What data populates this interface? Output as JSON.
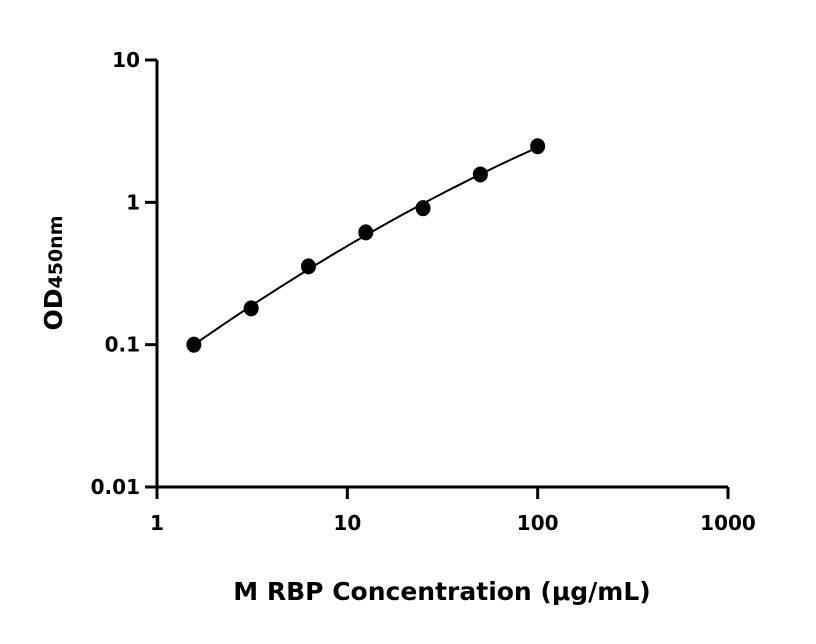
{
  "chart_data": {
    "type": "scatter",
    "title": "",
    "xlabel": "M RBP Concentration (μg/mL)",
    "ylabel_main": "OD",
    "ylabel_sub": "450nm",
    "xscale": "log",
    "yscale": "log",
    "xlim": [
      1,
      1000
    ],
    "ylim": [
      0.01,
      10
    ],
    "xticks": [
      "1",
      "10",
      "100",
      "1000"
    ],
    "yticks": [
      "0.01",
      "0.1",
      "1",
      "10"
    ],
    "grid": false,
    "legend": "none",
    "series": [
      {
        "x": [
          1.5625,
          3.125,
          6.25,
          12.5,
          25,
          50,
          100
        ],
        "y": [
          0.1,
          0.18,
          0.355,
          0.615,
          0.91,
          1.57,
          2.48
        ],
        "fit_curve": true,
        "color": "#000000"
      }
    ]
  }
}
